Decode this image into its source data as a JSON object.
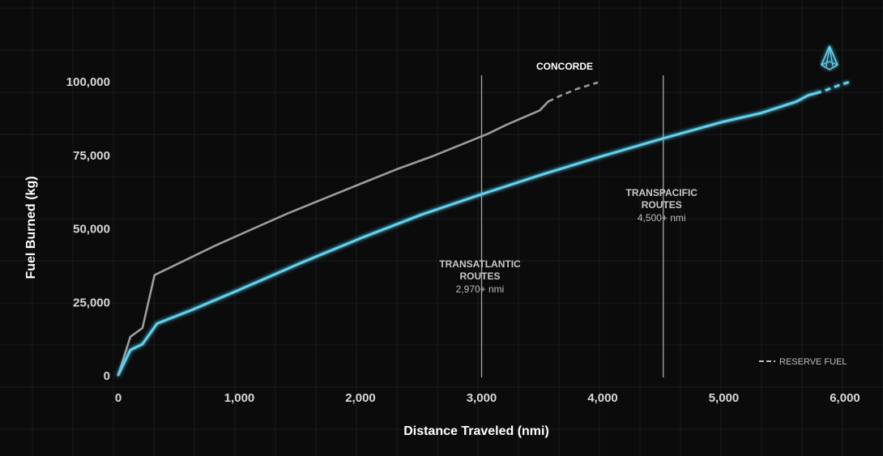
{
  "chart_data": {
    "type": "line",
    "xlabel": "Distance Traveled (nmi)",
    "ylabel": "Fuel Burned (kg)",
    "xlim": [
      0,
      6000
    ],
    "ylim": [
      0,
      100000
    ],
    "xticks": [
      0,
      1000,
      2000,
      3000,
      4000,
      5000,
      6000
    ],
    "xtick_labels": [
      "0",
      "1,000",
      "2,000",
      "3,000",
      "4,000",
      "5,000",
      "6,000"
    ],
    "yticks": [
      0,
      25000,
      50000,
      75000,
      100000
    ],
    "ytick_labels": [
      "0",
      "25,000",
      "50,000",
      "75,000",
      "100,000"
    ],
    "grid": true,
    "series": [
      {
        "name": "CONCORDE",
        "color": "#9c9c9c",
        "x": [
          0,
          100,
          200,
          300,
          500,
          800,
          1100,
          1400,
          1700,
          2000,
          2300,
          2600,
          2900,
          3050,
          3200,
          3480,
          3550
        ],
        "y": [
          0,
          13000,
          16000,
          34000,
          38000,
          44000,
          49500,
          55000,
          60000,
          65000,
          70000,
          74500,
          79500,
          82000,
          85000,
          90000,
          93000
        ],
        "reserve_x": [
          3550,
          3650,
          3800,
          3960
        ],
        "reserve_y": [
          93000,
          95000,
          97500,
          99500
        ]
      },
      {
        "name": "",
        "icon": "aircraft-icon",
        "color": "#5fd3ef",
        "x": [
          0,
          100,
          200,
          320,
          600,
          1000,
          1500,
          2000,
          2500,
          3000,
          3500,
          4000,
          4500,
          5000,
          5300,
          5600,
          5700,
          5760
        ],
        "y": [
          0,
          8500,
          10500,
          17500,
          22000,
          29000,
          38000,
          46500,
          54500,
          61500,
          68200,
          74500,
          80500,
          86200,
          89000,
          93000,
          95200,
          95800
        ],
        "reserve_x": [
          5760,
          5850,
          5950,
          6060
        ],
        "reserve_y": [
          95800,
          97000,
          98500,
          100000
        ]
      }
    ],
    "annotations": [
      {
        "x": 3000,
        "title_lines": [
          "TRANSATLANTIC",
          "ROUTES"
        ],
        "subtitle": "2,970+ nmi"
      },
      {
        "x": 4500,
        "title_lines": [
          "TRANSPACIFIC",
          "ROUTES"
        ],
        "subtitle": "4,500+ nmi"
      }
    ],
    "legend": {
      "label": "RESERVE FUEL",
      "style": "dashed",
      "position": "bottom-right"
    }
  }
}
